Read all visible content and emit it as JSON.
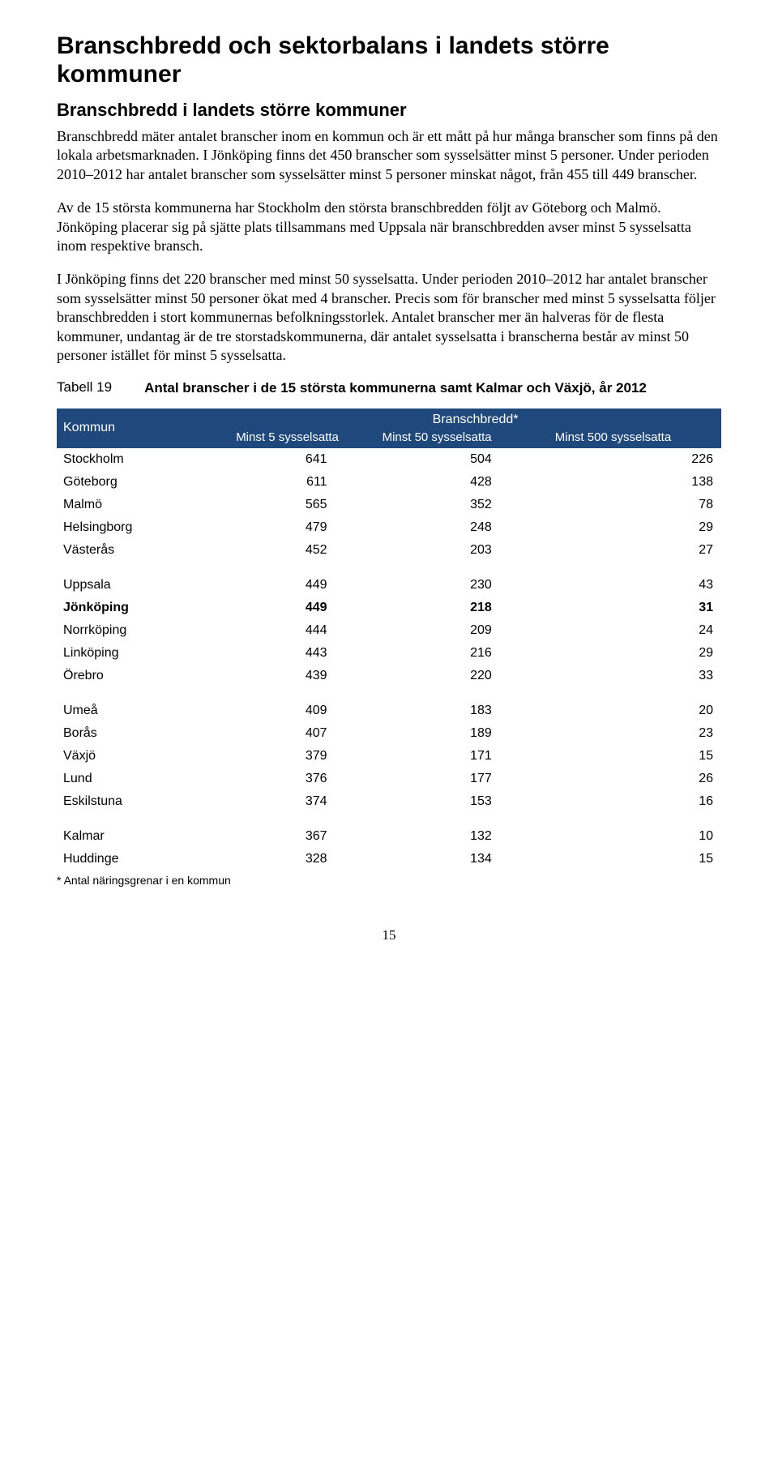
{
  "heading": "Branschbredd och sektorbalans i landets större kommuner",
  "subheading": "Branschbredd i landets större kommuner",
  "paragraphs": [
    "Branschbredd mäter antalet branscher inom en kommun och är ett mått på hur många branscher som finns på den lokala arbetsmarknaden. I Jönköping finns det 450 branscher som sysselsätter minst 5 personer. Under perioden 2010–2012 har antalet branscher som sysselsätter minst 5 personer minskat något, från 455 till 449 branscher.",
    "Av de 15 största kommunerna har Stockholm den största branschbredden följt av Göteborg och Malmö. Jönköping placerar sig på sjätte plats tillsammans med Uppsala när branschbredden avser minst 5 sysselsatta inom respektive bransch.",
    "I Jönköping finns det 220 branscher med minst 50 sysselsatta. Under perioden 2010–2012 har antalet branscher som sysselsätter minst 50 personer ökat med 4 branscher. Precis som för branscher med minst 5 sysselsatta följer branschbredden i stort kommunernas befolkningsstorlek. Antalet branscher mer än halveras för de flesta kommuner, undantag är de tre storstadskommunerna, där antalet sysselsatta i branscherna består av minst 50 personer istället för minst 5 sysselsatta."
  ],
  "table": {
    "label": "Tabell 19",
    "caption": "Antal branscher i de 15 största kommunerna samt Kalmar och Växjö, år 2012",
    "header_left": "Kommun",
    "header_span": "Branschbredd*",
    "sub_headers": [
      "Minst 5 sysselsatta",
      "Minst 50 sysselsatta",
      "Minst 500 sysselsatta"
    ],
    "header_bg": "#1f497d",
    "header_fg": "#ffffff",
    "groups": [
      [
        {
          "name": "Stockholm",
          "v": [
            641,
            504,
            226
          ]
        },
        {
          "name": "Göteborg",
          "v": [
            611,
            428,
            138
          ]
        },
        {
          "name": "Malmö",
          "v": [
            565,
            352,
            78
          ]
        },
        {
          "name": "Helsingborg",
          "v": [
            479,
            248,
            29
          ]
        },
        {
          "name": "Västerås",
          "v": [
            452,
            203,
            27
          ]
        }
      ],
      [
        {
          "name": "Uppsala",
          "v": [
            449,
            230,
            43
          ]
        },
        {
          "name": "Jönköping",
          "v": [
            449,
            218,
            31
          ],
          "bold": true
        },
        {
          "name": "Norrköping",
          "v": [
            444,
            209,
            24
          ]
        },
        {
          "name": "Linköping",
          "v": [
            443,
            216,
            29
          ]
        },
        {
          "name": "Örebro",
          "v": [
            439,
            220,
            33
          ]
        }
      ],
      [
        {
          "name": "Umeå",
          "v": [
            409,
            183,
            20
          ]
        },
        {
          "name": "Borås",
          "v": [
            407,
            189,
            23
          ]
        },
        {
          "name": "Växjö",
          "v": [
            379,
            171,
            15
          ]
        },
        {
          "name": "Lund",
          "v": [
            376,
            177,
            26
          ]
        },
        {
          "name": "Eskilstuna",
          "v": [
            374,
            153,
            16
          ]
        }
      ],
      [
        {
          "name": "Kalmar",
          "v": [
            367,
            132,
            10
          ]
        },
        {
          "name": "Huddinge",
          "v": [
            328,
            134,
            15
          ]
        }
      ]
    ],
    "footnote": "* Antal näringsgrenar i en kommun"
  },
  "page_number": "15"
}
